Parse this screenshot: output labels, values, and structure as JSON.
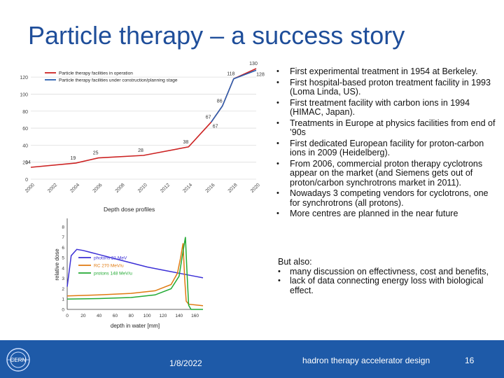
{
  "slide": {
    "title": "Particle therapy – a success story",
    "bullets": [
      "First experimental treatment in 1954 at Berkeley.",
      "First hospital-based proton treatment facility in 1993 (Loma Linda, US).",
      "First treatment facility with carbon ions in 1994 (HIMAC, Japan).",
      "Treatments in Europe at physics facilities from end of ’90s",
      "First dedicated European facility for proton-carbon ions in 2009 (Heidelberg).",
      "From 2006, commercial proton therapy cyclotrons appear on the market (and Siemens gets out of proton/carbon synchrotrons market in 2011).",
      "Nowadays 3 competing vendors for cyclotrons, one for synchrotrons (all protons).",
      "More centres are planned in the near future"
    ],
    "but_also_heading": "But also:",
    "but_also": [
      "many discussion on effectivness, cost and benefits,",
      "lack of data connecting energy loss with biological effect."
    ]
  },
  "footer": {
    "date": "1/8/2022",
    "center_text": "hadron therapy accelerator design",
    "page_number": "16",
    "logo_text": "CERN",
    "color": "#1e5aa8"
  },
  "chart_data": [
    {
      "type": "line",
      "title": "",
      "xlabel": "",
      "ylabel": "",
      "x_ticks": [
        "2000",
        "2002",
        "2004",
        "2006",
        "2008",
        "2010",
        "2012",
        "2014",
        "2016",
        "2018",
        "2020"
      ],
      "y_ticks": [
        "0",
        "20",
        "40",
        "60",
        "80",
        "100",
        "120"
      ],
      "xlim": [
        2000,
        2020
      ],
      "ylim": [
        0,
        130
      ],
      "grid": true,
      "legend_placement": "top-left",
      "series": [
        {
          "name": "Particle therapy facilities in operation",
          "color": "#cc2222",
          "points": [
            [
              2000,
              14
            ],
            [
              2004,
              19
            ],
            [
              2006,
              25
            ],
            [
              2010,
              28
            ],
            [
              2014,
              38
            ],
            [
              2016,
              67
            ],
            [
              2017,
              86
            ],
            [
              2018,
              118
            ],
            [
              2020,
              130
            ]
          ],
          "labels": [
            {
              "x": 2000,
              "y": 14,
              "text": "14"
            },
            {
              "x": 2004,
              "y": 19,
              "text": "19"
            },
            {
              "x": 2006,
              "y": 25,
              "text": "25"
            },
            {
              "x": 2010,
              "y": 28,
              "text": "28"
            },
            {
              "x": 2014,
              "y": 38,
              "text": "38"
            },
            {
              "x": 2016,
              "y": 67,
              "text": "67"
            },
            {
              "x": 2017,
              "y": 86,
              "text": "86"
            },
            {
              "x": 2018,
              "y": 118,
              "text": "118"
            },
            {
              "x": 2020,
              "y": 130,
              "text": "130"
            }
          ]
        },
        {
          "name": "Particle therapy facilities under construction/planning stage",
          "color": "#2a5fb0",
          "points": [
            [
              2016,
              67
            ],
            [
              2017,
              86
            ],
            [
              2018,
              118
            ],
            [
              2020,
              128
            ]
          ],
          "labels": [
            {
              "x": 2016,
              "y": 67,
              "text": "67"
            },
            {
              "x": 2020,
              "y": 128,
              "text": "128"
            }
          ]
        }
      ]
    },
    {
      "type": "line",
      "title": "Depth dose profiles",
      "xlabel": "depth in water [mm]",
      "ylabel": "relative dose",
      "x_ticks": [
        "0",
        "20",
        "40",
        "60",
        "80",
        "100",
        "120",
        "140",
        "160"
      ],
      "y_ticks": [
        "0",
        "1",
        "2",
        "3",
        "4",
        "5",
        "6",
        "7",
        "8"
      ],
      "xlim": [
        0,
        170
      ],
      "ylim": [
        0,
        8.8
      ],
      "legend_placement": "middle",
      "series": [
        {
          "name": "photons 21 MeV",
          "color": "#3b2fd6",
          "points": [
            [
              0,
              2.2
            ],
            [
              5,
              5.2
            ],
            [
              12,
              5.8
            ],
            [
              20,
              5.7
            ],
            [
              40,
              5.3
            ],
            [
              60,
              4.9
            ],
            [
              80,
              4.5
            ],
            [
              100,
              4.1
            ],
            [
              120,
              3.8
            ],
            [
              140,
              3.5
            ],
            [
              160,
              3.2
            ],
            [
              170,
              3.05
            ]
          ]
        },
        {
          "name": "RC 270 MeV/u",
          "color": "#e07a10",
          "points": [
            [
              0,
              1.3
            ],
            [
              40,
              1.4
            ],
            [
              80,
              1.55
            ],
            [
              110,
              1.8
            ],
            [
              130,
              2.4
            ],
            [
              138,
              3.5
            ],
            [
              142,
              5.0
            ],
            [
              145,
              6.4
            ],
            [
              147,
              3.0
            ],
            [
              149,
              0.8
            ],
            [
              152,
              0.5
            ],
            [
              170,
              0.35
            ]
          ]
        },
        {
          "name": "protons 148 MeV/u",
          "color": "#22aa33",
          "points": [
            [
              0,
              1.0
            ],
            [
              40,
              1.05
            ],
            [
              80,
              1.15
            ],
            [
              110,
              1.4
            ],
            [
              130,
              2.0
            ],
            [
              140,
              3.2
            ],
            [
              145,
              5.6
            ],
            [
              148,
              7.0
            ],
            [
              150,
              3.5
            ],
            [
              152,
              0.4
            ],
            [
              155,
              0.0
            ],
            [
              170,
              0.0
            ]
          ]
        }
      ]
    }
  ]
}
